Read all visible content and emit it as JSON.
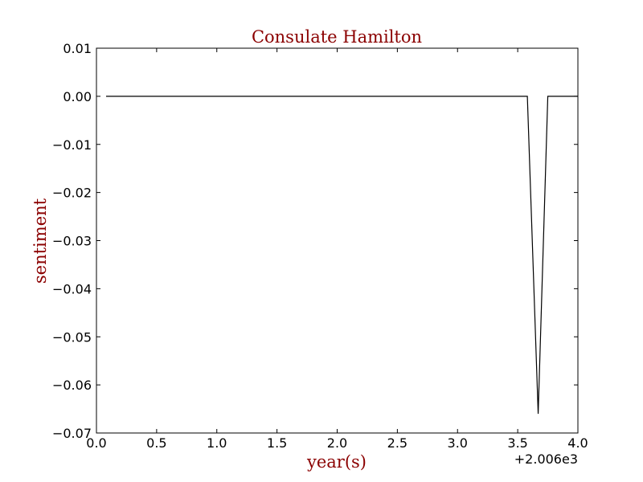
{
  "chart_data": {
    "type": "line",
    "title": "Consulate Hamilton",
    "xlabel": "year(s)",
    "ylabel": "sentiment",
    "x_offset_label": "+2.006e3",
    "text_color": "#8b0000",
    "line_color": "#000000",
    "xlim": [
      0.0,
      4.0
    ],
    "ylim": [
      -0.07,
      0.01
    ],
    "x_ticks": [
      0.0,
      0.5,
      1.0,
      1.5,
      2.0,
      2.5,
      3.0,
      3.5,
      4.0
    ],
    "x_tick_labels": [
      "0.0",
      "0.5",
      "1.0",
      "1.5",
      "2.0",
      "2.5",
      "3.0",
      "3.5",
      "4.0"
    ],
    "y_ticks": [
      0.01,
      0.0,
      -0.01,
      -0.02,
      -0.03,
      -0.04,
      -0.05,
      -0.06,
      -0.07
    ],
    "y_tick_labels": [
      "0.01",
      "0.00",
      "−0.01",
      "−0.02",
      "−0.03",
      "−0.04",
      "−0.05",
      "−0.06",
      "−0.07"
    ],
    "grid": false,
    "series": [
      {
        "x": [
          0.08,
          3.58,
          3.67,
          3.75,
          4.0
        ],
        "values": [
          0.0,
          0.0,
          -0.066,
          0.0,
          0.0
        ]
      }
    ]
  }
}
